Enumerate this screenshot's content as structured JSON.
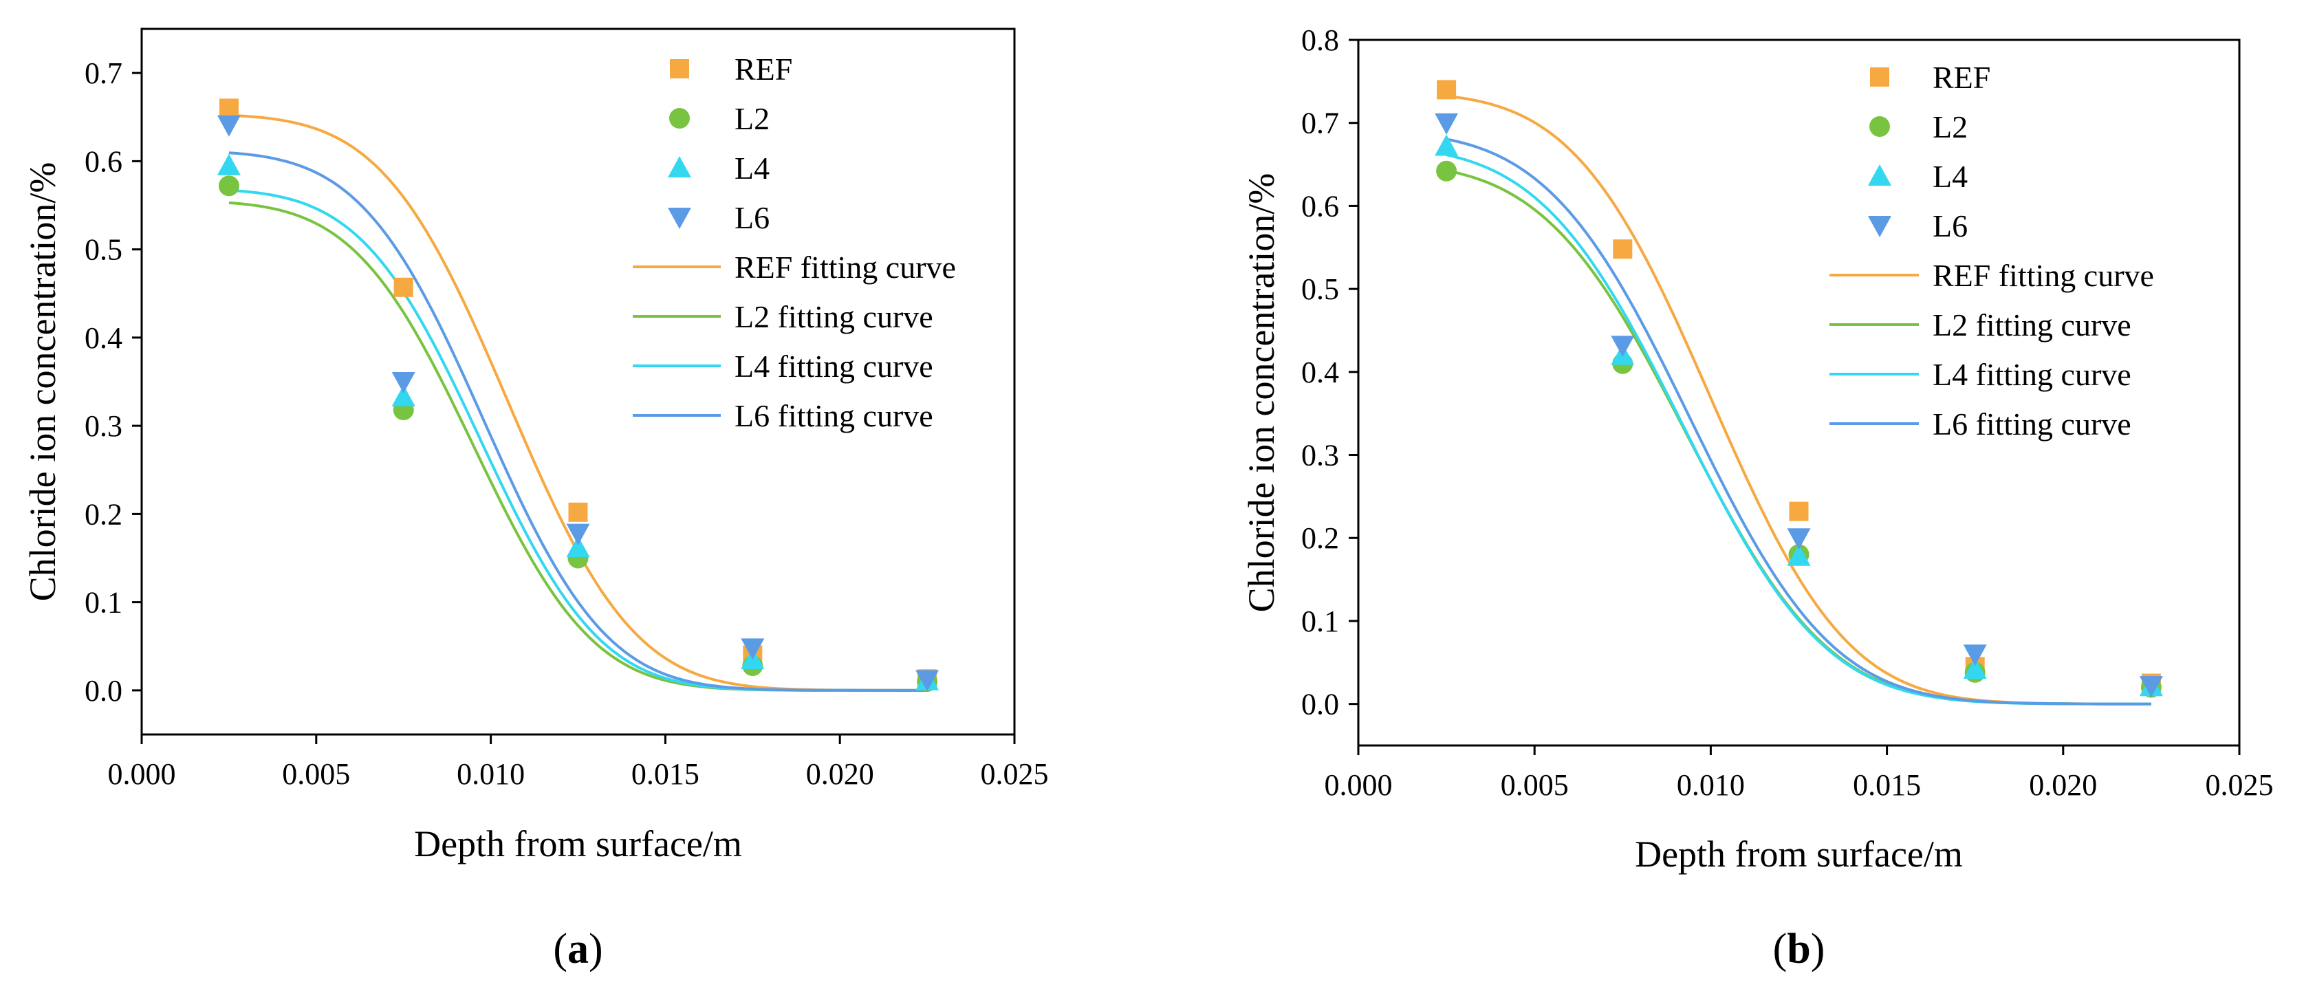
{
  "chart_data": [
    {
      "type": "scatter",
      "panel_label": "a",
      "xlabel": "Depth from surface/m",
      "ylabel": "Chloride ion concentration/%",
      "xlim": [
        0.0,
        0.025
      ],
      "ylim": [
        -0.05,
        0.75
      ],
      "xticks": [
        "0.000",
        "0.005",
        "0.010",
        "0.015",
        "0.020",
        "0.025"
      ],
      "yticks": [
        "0.0",
        "0.1",
        "0.2",
        "0.3",
        "0.4",
        "0.5",
        "0.6",
        "0.7"
      ],
      "x": [
        0.0025,
        0.0075,
        0.0125,
        0.0175,
        0.0225
      ],
      "series": [
        {
          "name": "REF",
          "marker": "square",
          "color": "#F7A941",
          "values": [
            0.66,
            0.457,
            0.202,
            0.04,
            0.013
          ]
        },
        {
          "name": "L2",
          "marker": "circle",
          "color": "#78C340",
          "values": [
            0.572,
            0.318,
            0.15,
            0.028,
            0.01
          ]
        },
        {
          "name": "L4",
          "marker": "triangle-up",
          "color": "#33D8F0",
          "values": [
            0.595,
            0.333,
            0.162,
            0.035,
            0.011
          ]
        },
        {
          "name": "L6",
          "marker": "triangle-down",
          "color": "#5B9BE6",
          "values": [
            0.641,
            0.35,
            0.178,
            0.048,
            0.012
          ]
        }
      ],
      "fits": [
        {
          "name": "REF fitting curve",
          "color": "#F7A941",
          "c0": 0.69,
          "d": 0.0105,
          "s": 0.004
        },
        {
          "name": "L2 fitting curve",
          "color": "#78C340",
          "c0": 0.585,
          "d": 0.0095,
          "s": 0.0038
        },
        {
          "name": "L4 fitting curve",
          "color": "#33D8F0",
          "c0": 0.6,
          "d": 0.0097,
          "s": 0.0038
        },
        {
          "name": "L6 fitting curve",
          "color": "#5B9BE6",
          "c0": 0.645,
          "d": 0.0098,
          "s": 0.0039
        }
      ]
    },
    {
      "type": "scatter",
      "panel_label": "b",
      "xlabel": "Depth from surface/m",
      "ylabel": "Chloride ion concentration/%",
      "xlim": [
        0.0,
        0.025
      ],
      "ylim": [
        -0.05,
        0.8
      ],
      "xticks": [
        "0.000",
        "0.005",
        "0.010",
        "0.015",
        "0.020",
        "0.025"
      ],
      "yticks": [
        "0.0",
        "0.1",
        "0.2",
        "0.3",
        "0.4",
        "0.5",
        "0.6",
        "0.7",
        "0.8"
      ],
      "x": [
        0.0025,
        0.0075,
        0.0125,
        0.0175,
        0.0225
      ],
      "series": [
        {
          "name": "REF",
          "marker": "square",
          "color": "#F7A941",
          "values": [
            0.74,
            0.548,
            0.232,
            0.045,
            0.025
          ]
        },
        {
          "name": "L2",
          "marker": "circle",
          "color": "#78C340",
          "values": [
            0.642,
            0.41,
            0.18,
            0.038,
            0.02
          ]
        },
        {
          "name": "L4",
          "marker": "triangle-up",
          "color": "#33D8F0",
          "values": [
            0.672,
            0.42,
            0.178,
            0.042,
            0.021
          ]
        },
        {
          "name": "L6",
          "marker": "triangle-down",
          "color": "#5B9BE6",
          "values": [
            0.7,
            0.432,
            0.2,
            0.06,
            0.022
          ]
        }
      ],
      "fits": [
        {
          "name": "REF fitting curve",
          "color": "#F7A941",
          "c0": 0.775,
          "d": 0.01,
          "s": 0.0043
        },
        {
          "name": "L2 fitting curve",
          "color": "#78C340",
          "c0": 0.68,
          "d": 0.0093,
          "s": 0.0045
        },
        {
          "name": "L4 fitting curve",
          "color": "#33D8F0",
          "c0": 0.7,
          "d": 0.0092,
          "s": 0.0045
        },
        {
          "name": "L6 fitting curve",
          "color": "#5B9BE6",
          "c0": 0.72,
          "d": 0.0094,
          "s": 0.0045
        }
      ]
    }
  ]
}
